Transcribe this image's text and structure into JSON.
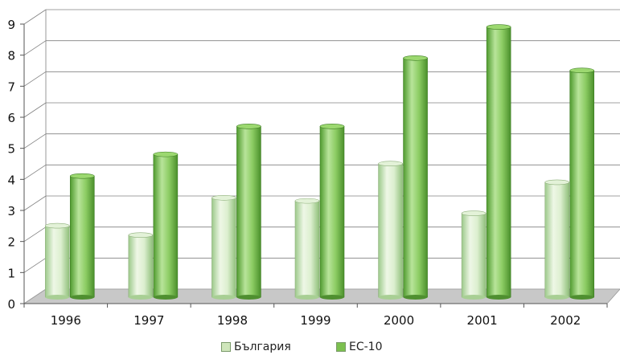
{
  "chart_data": {
    "type": "bar",
    "categories": [
      "1996",
      "1997",
      "1998",
      "1999",
      "2000",
      "2001",
      "2002"
    ],
    "series": [
      {
        "name": "България",
        "values": [
          2.3,
          2.0,
          3.2,
          3.1,
          4.3,
          2.7,
          3.7
        ],
        "color": "#cfe6bb"
      },
      {
        "name": "ЕС-10",
        "values": [
          3.9,
          4.6,
          5.5,
          5.5,
          7.7,
          8.7,
          7.3
        ],
        "color": "#7cc04f"
      }
    ],
    "y_ticks": [
      "0",
      "1",
      "2",
      "3",
      "4",
      "5",
      "6",
      "7",
      "8",
      "9"
    ],
    "ylim": [
      0,
      9
    ],
    "grid": true,
    "legend_position": "bottom",
    "colors": {
      "floor": "#c8c8c8",
      "grid": "#808080"
    }
  }
}
